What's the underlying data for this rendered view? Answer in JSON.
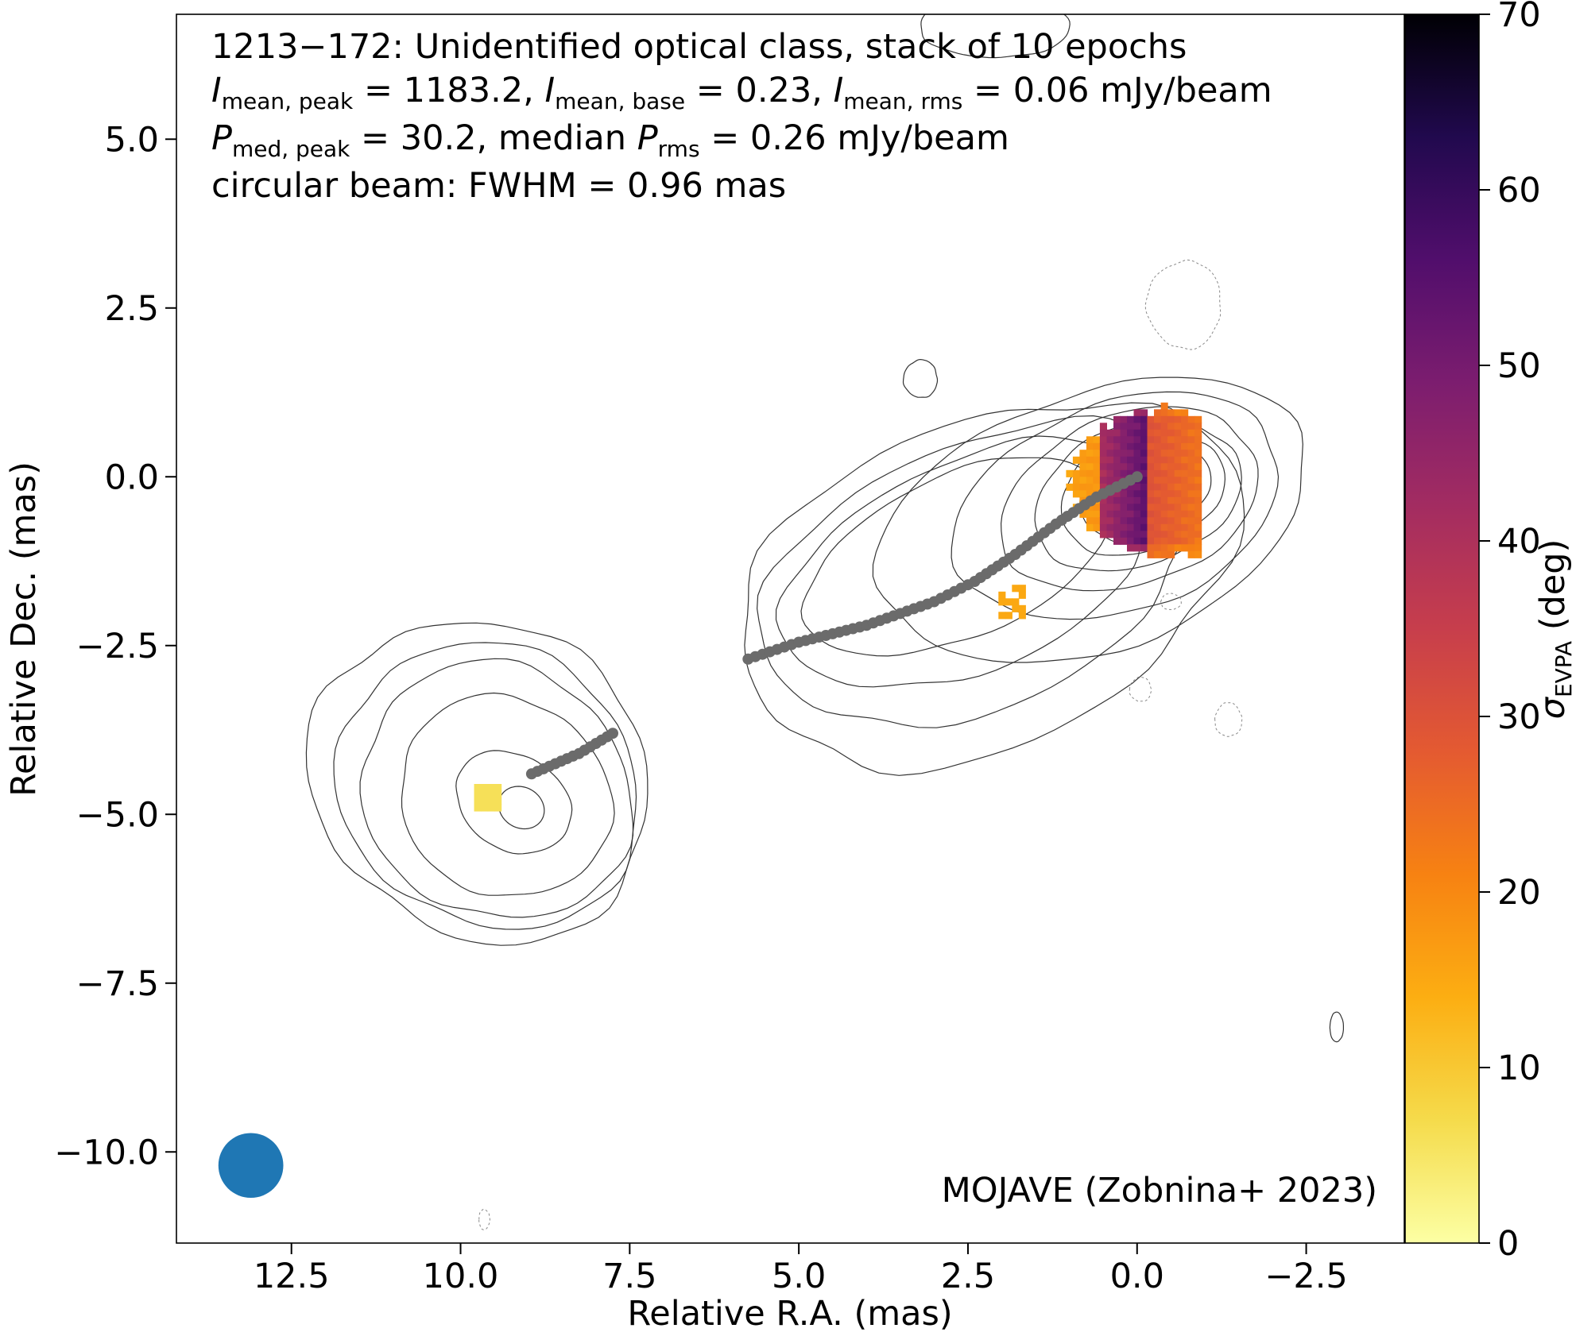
{
  "chart_data": {
    "type": "heatmap",
    "title_lines": [
      "1213−172: Unidentified optical class, stack of 10 epochs",
      "I_mean,peak = 1183.2, I_mean,base = 0.23, I_mean,rms = 0.06 mJy/beam",
      "P_med,peak = 30.2, median P_rms = 0.26 mJy/beam",
      "circular beam: FWHM = 0.96 mas"
    ],
    "source": "1213−172",
    "optical_class": "Unidentified optical class",
    "epochs": 10,
    "I_mean_peak": 1183.2,
    "I_mean_base": 0.23,
    "I_mean_rms": 0.06,
    "P_med_peak": 30.2,
    "P_rms_median": 0.26,
    "flux_unit": "mJy/beam",
    "beam_fwhm_mas": 0.96,
    "xlabel": "Relative R.A. (mas)",
    "ylabel": "Relative Dec. (mas)",
    "colorbar_label": "σ_EVPA (deg)",
    "xlim": [
      14.2,
      -3.95
    ],
    "ylim": [
      -11.35,
      6.85
    ],
    "x_ticks": [
      12.5,
      10.0,
      7.5,
      5.0,
      2.5,
      0.0,
      -2.5
    ],
    "x_tick_labels": [
      "12.5",
      "10.0",
      "7.5",
      "5.0",
      "2.5",
      "0.0",
      "−2.5"
    ],
    "y_ticks": [
      5.0,
      2.5,
      0.0,
      -2.5,
      -5.0,
      -7.5,
      -10.0
    ],
    "y_tick_labels": [
      "5.0",
      "2.5",
      "0.0",
      "−2.5",
      "−5.0",
      "−7.5",
      "−10.0"
    ],
    "colorbar_range": [
      0,
      70
    ],
    "colorbar_ticks": [
      0,
      10,
      20,
      30,
      40,
      50,
      60,
      70
    ],
    "colormap": "inferno_r",
    "credit": "MOJAVE (Zobnina+ 2023)",
    "beam_position_mas": [
      13.1,
      -10.2
    ],
    "ridgeline_outer_mas": [
      [
        8.95,
        -4.4
      ],
      [
        8.6,
        -4.25
      ],
      [
        8.25,
        -4.1
      ],
      [
        7.75,
        -3.8
      ]
    ],
    "ridgeline_inner_mas": [
      [
        5.75,
        -2.7
      ],
      [
        5.0,
        -2.45
      ],
      [
        4.0,
        -2.2
      ],
      [
        3.0,
        -1.85
      ],
      [
        2.4,
        -1.55
      ],
      [
        1.8,
        -1.15
      ],
      [
        1.2,
        -0.7
      ],
      [
        0.6,
        -0.3
      ],
      [
        0.0,
        0.0
      ]
    ],
    "colors": {
      "ridgeline": "#6b6b6b",
      "beam": "#1f77b4",
      "contour": "#333333"
    }
  }
}
